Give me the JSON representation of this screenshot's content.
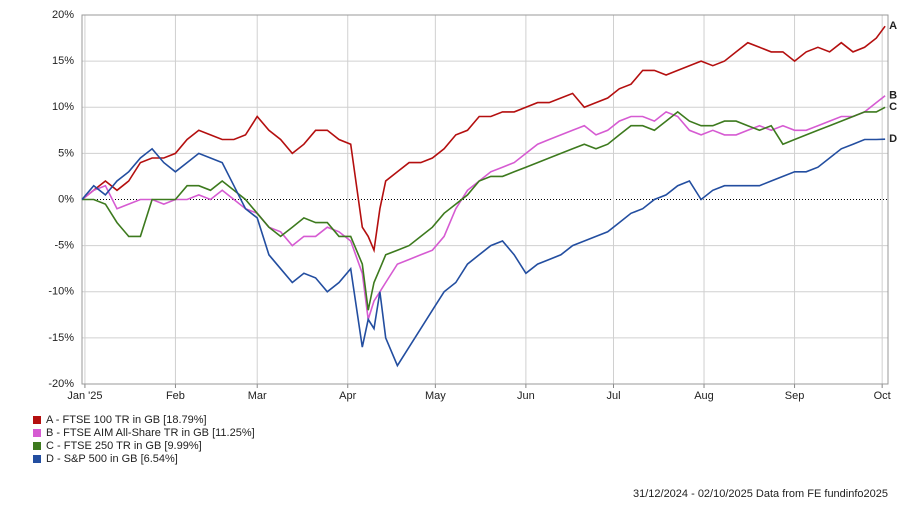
{
  "chart_data": {
    "type": "line",
    "x": [
      0,
      4,
      8,
      12,
      16,
      20,
      24,
      28,
      32,
      36,
      40,
      44,
      48,
      52,
      56,
      60,
      64,
      68,
      72,
      76,
      80,
      84,
      88,
      92,
      96,
      98,
      100,
      102,
      104,
      108,
      112,
      116,
      120,
      124,
      128,
      132,
      136,
      140,
      144,
      148,
      152,
      156,
      160,
      164,
      168,
      172,
      176,
      180,
      184,
      188,
      192,
      196,
      200,
      204,
      208,
      212,
      216,
      220,
      224,
      228,
      232,
      236,
      240,
      244,
      248,
      252,
      256,
      260,
      264,
      268,
      272,
      275
    ],
    "xlim": [
      0,
      276
    ],
    "xticks": [
      {
        "value": 1,
        "label": "Jan '25"
      },
      {
        "value": 32,
        "label": "Feb"
      },
      {
        "value": 60,
        "label": "Mar"
      },
      {
        "value": 91,
        "label": "Apr"
      },
      {
        "value": 121,
        "label": "May"
      },
      {
        "value": 152,
        "label": "Jun"
      },
      {
        "value": 182,
        "label": "Jul"
      },
      {
        "value": 213,
        "label": "Aug"
      },
      {
        "value": 244,
        "label": "Sep"
      },
      {
        "value": 274,
        "label": "Oct"
      }
    ],
    "ylim": [
      -20,
      20
    ],
    "yticks": [
      {
        "value": -20,
        "label": "-20%"
      },
      {
        "value": -15,
        "label": "-15%"
      },
      {
        "value": -10,
        "label": "-10%"
      },
      {
        "value": -5,
        "label": "-5%"
      },
      {
        "value": 0,
        "label": "0%"
      },
      {
        "value": 5,
        "label": "5%"
      },
      {
        "value": 10,
        "label": "10%"
      },
      {
        "value": 15,
        "label": "15%"
      },
      {
        "value": 20,
        "label": "20%"
      }
    ],
    "grid": true,
    "series": [
      {
        "name": "A - FTSE 100 TR in GB [18.79%]",
        "end_label": "A",
        "color": "#b40f0f",
        "values": [
          0,
          1,
          2,
          1,
          2,
          4,
          4.5,
          4.5,
          5,
          6.5,
          7.5,
          7,
          6.5,
          6.5,
          7,
          9,
          7.5,
          6.5,
          5,
          6,
          7.5,
          7.5,
          6.5,
          6,
          -3,
          -4,
          -5.5,
          -1,
          2,
          3,
          4,
          4,
          4.5,
          5.5,
          7,
          7.5,
          9,
          9,
          9.5,
          9.5,
          10,
          10.5,
          10.5,
          11,
          11.5,
          10,
          10.5,
          11,
          12,
          12.5,
          14,
          14,
          13.5,
          14,
          14.5,
          15,
          14.5,
          15,
          16,
          17,
          16.5,
          16,
          16,
          15,
          16,
          16.5,
          16,
          17,
          16,
          16.5,
          17.5,
          18.79
        ]
      },
      {
        "name": "B - FTSE AIM All-Share TR in GB [11.25%]",
        "end_label": "B",
        "color": "#d65bd2",
        "values": [
          0,
          1,
          1.5,
          -1,
          -0.5,
          0,
          0,
          -0.5,
          0,
          0,
          0.5,
          0,
          1,
          0,
          -1,
          -1.5,
          -3,
          -3.5,
          -5,
          -4,
          -4,
          -3,
          -3.5,
          -4.5,
          -8,
          -13,
          -11,
          -10,
          -9,
          -7,
          -6.5,
          -6,
          -5.5,
          -4,
          -1,
          1,
          2,
          3,
          3.5,
          4,
          5,
          6,
          6.5,
          7,
          7.5,
          8,
          7,
          7.5,
          8.5,
          9,
          9,
          8.5,
          9.5,
          9,
          7.5,
          7,
          7.5,
          7,
          7,
          7.5,
          8,
          7.5,
          8,
          7.5,
          7.5,
          8,
          8.5,
          9,
          9,
          9.5,
          10.5,
          11.25
        ]
      },
      {
        "name": "C - FTSE 250 TR in GB [9.99%]",
        "end_label": "C",
        "color": "#3d7a1e",
        "values": [
          0,
          0,
          -0.5,
          -2.5,
          -4,
          -4,
          0,
          0,
          0,
          1.5,
          1.5,
          1,
          2,
          1,
          0,
          -1.5,
          -3,
          -4,
          -3,
          -2,
          -2.5,
          -2.5,
          -4,
          -4,
          -7,
          -12,
          -9,
          -7.5,
          -6,
          -5.5,
          -5,
          -4,
          -3,
          -1.5,
          -0.5,
          0.5,
          2,
          2.5,
          2.5,
          3,
          3.5,
          4,
          4.5,
          5,
          5.5,
          6,
          5.5,
          6,
          7,
          8,
          8,
          7.5,
          8.5,
          9.5,
          8.5,
          8,
          8,
          8.5,
          8.5,
          8,
          7.5,
          8,
          6,
          6.5,
          7,
          7.5,
          8,
          8.5,
          9,
          9.5,
          9.5,
          9.99
        ]
      },
      {
        "name": "D - S&P 500 in GB [6.54%]",
        "end_label": "D",
        "color": "#234ea0",
        "values": [
          0,
          1.5,
          0.5,
          2,
          3,
          4.5,
          5.5,
          4,
          3,
          4,
          5,
          4.5,
          4,
          1.5,
          -1,
          -2,
          -6,
          -7.5,
          -9,
          -8,
          -8.5,
          -10,
          -9,
          -7.5,
          -16,
          -13,
          -14,
          -10,
          -15,
          -18,
          -16,
          -14,
          -12,
          -10,
          -9,
          -7,
          -6,
          -5,
          -4.5,
          -6,
          -8,
          -7,
          -6.5,
          -6,
          -5,
          -4.5,
          -4,
          -3.5,
          -2.5,
          -1.5,
          -1,
          0,
          0.5,
          1.5,
          2,
          0,
          1,
          1.5,
          1.5,
          1.5,
          1.5,
          2,
          2.5,
          3,
          3,
          3.5,
          4.5,
          5.5,
          6,
          6.5,
          6.5,
          6.54
        ]
      }
    ],
    "footer": "31/12/2024 - 02/10/2025 Data from FE fundinfo2025"
  }
}
